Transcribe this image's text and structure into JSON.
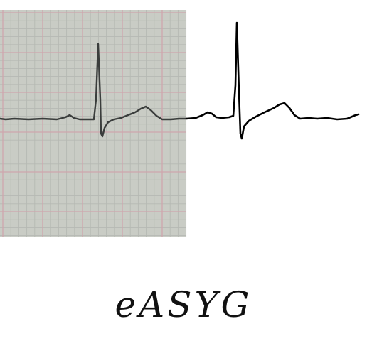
{
  "logo": {
    "text": "eASYG"
  },
  "colors": {
    "paper": "#c9ccc5",
    "grid_minor": "#b6b9b3",
    "grid_major": "#cfa6ad",
    "trace_paper": "#3a3d3c",
    "trace_clean": "#000000",
    "background": "#ffffff"
  },
  "graphic": {
    "left_panel": "ecg-photo-on-grid-paper",
    "right_panel": "digitized-ecg-trace"
  }
}
